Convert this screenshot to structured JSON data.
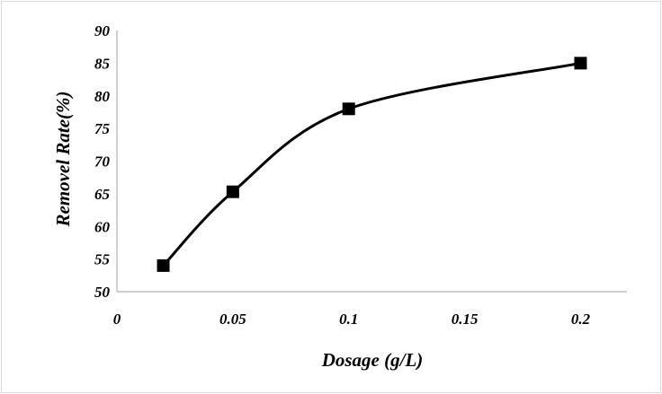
{
  "chart_data": {
    "type": "line",
    "title": "",
    "xlabel": "Dosage (g/L)",
    "ylabel": "Removel Rate(%)",
    "x_ticks": [
      "0",
      "0.05",
      "0.1",
      "0.15",
      "0.2"
    ],
    "y_ticks": [
      "50",
      "55",
      "60",
      "65",
      "70",
      "75",
      "80",
      "85",
      "90"
    ],
    "xlim": [
      0,
      0.22
    ],
    "ylim": [
      50,
      90
    ],
    "grid": false,
    "legend": "none",
    "smoothed": true,
    "marker": "square",
    "series": [
      {
        "x": [
          0.02,
          0.05,
          0.1,
          0.2
        ],
        "y": [
          54,
          65.3,
          78,
          85
        ]
      }
    ],
    "colors": {
      "line": "#000000",
      "marker": "#000000",
      "axis": "#bfbfbf"
    }
  }
}
